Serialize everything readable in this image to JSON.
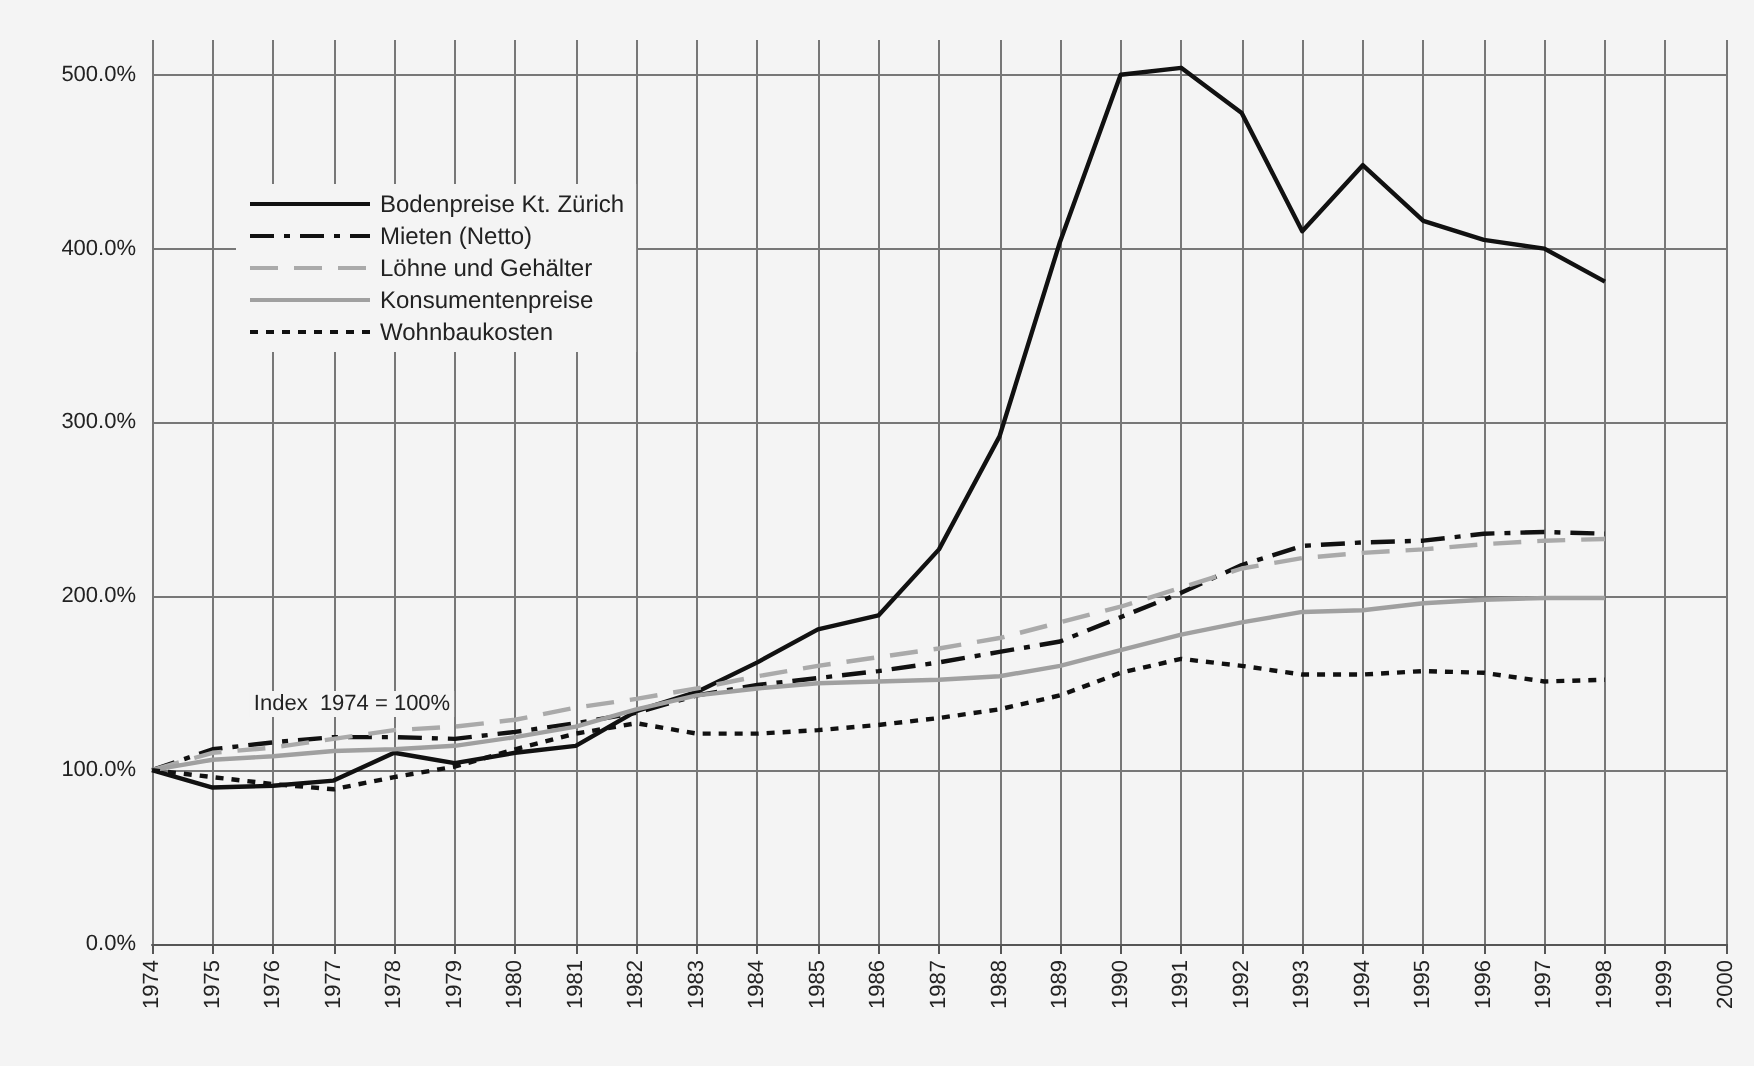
{
  "chart_data": {
    "type": "line",
    "x": [
      1974,
      1975,
      1976,
      1977,
      1978,
      1979,
      1980,
      1981,
      1982,
      1983,
      1984,
      1985,
      1986,
      1987,
      1988,
      1989,
      1990,
      1991,
      1992,
      1993,
      1994,
      1995,
      1996,
      1997,
      1998
    ],
    "series": [
      {
        "name": "Bodenpreise Kt. Zürich",
        "color": "#111111",
        "line_style": "solid",
        "values": [
          100,
          90,
          91,
          94,
          110,
          104,
          110,
          114,
          134,
          145,
          162,
          181,
          189,
          227,
          292,
          404,
          500,
          504,
          478,
          410,
          448,
          416,
          405,
          400,
          381
        ]
      },
      {
        "name": "Mieten (Netto)",
        "color": "#111111",
        "line_style": "dashdot",
        "values": [
          100,
          112,
          116,
          119,
          119,
          118,
          122,
          127,
          133,
          143,
          149,
          153,
          157,
          162,
          168,
          174,
          188,
          202,
          218,
          229,
          231,
          232,
          236,
          237,
          236
        ]
      },
      {
        "name": "Löhne und Gehälter",
        "color": "#aaaaaa",
        "line_style": "dashed",
        "values": [
          100,
          110,
          113,
          118,
          123,
          125,
          129,
          136,
          141,
          147,
          154,
          160,
          165,
          170,
          176,
          185,
          194,
          205,
          216,
          222,
          225,
          227,
          230,
          232,
          233
        ]
      },
      {
        "name": "Konsumentenpreise",
        "color": "#a0a0a0",
        "line_style": "solid",
        "values": [
          100,
          106,
          108,
          111,
          112,
          114,
          119,
          125,
          135,
          143,
          147,
          150,
          151,
          152,
          154,
          160,
          169,
          178,
          185,
          191,
          192,
          196,
          198,
          199,
          199
        ]
      },
      {
        "name": "Wohnbaukosten",
        "color": "#111111",
        "line_style": "dotted",
        "values": [
          100,
          96,
          92,
          89,
          96,
          102,
          112,
          121,
          127,
          121,
          121,
          123,
          126,
          130,
          135,
          143,
          156,
          164,
          160,
          155,
          155,
          157,
          156,
          151,
          152
        ]
      }
    ],
    "xlim": [
      1974,
      2000
    ],
    "xticks": [
      1974,
      1975,
      1976,
      1977,
      1978,
      1979,
      1980,
      1981,
      1982,
      1983,
      1984,
      1985,
      1986,
      1987,
      1988,
      1989,
      1990,
      1991,
      1992,
      1993,
      1994,
      1995,
      1996,
      1997,
      1998,
      1999,
      2000
    ],
    "ylim": [
      0,
      520
    ],
    "yticks": [
      {
        "value": 0,
        "label": "0.0%"
      },
      {
        "value": 100,
        "label": "100.0%"
      },
      {
        "value": 200,
        "label": "200.0%"
      },
      {
        "value": 300,
        "label": "300.0%"
      },
      {
        "value": 400,
        "label": "400.0%"
      },
      {
        "value": 500,
        "label": "500.0%"
      }
    ],
    "annotations": [
      "Index  1974 = 100%"
    ],
    "grid": true,
    "legend": "top left",
    "marker": "none"
  }
}
